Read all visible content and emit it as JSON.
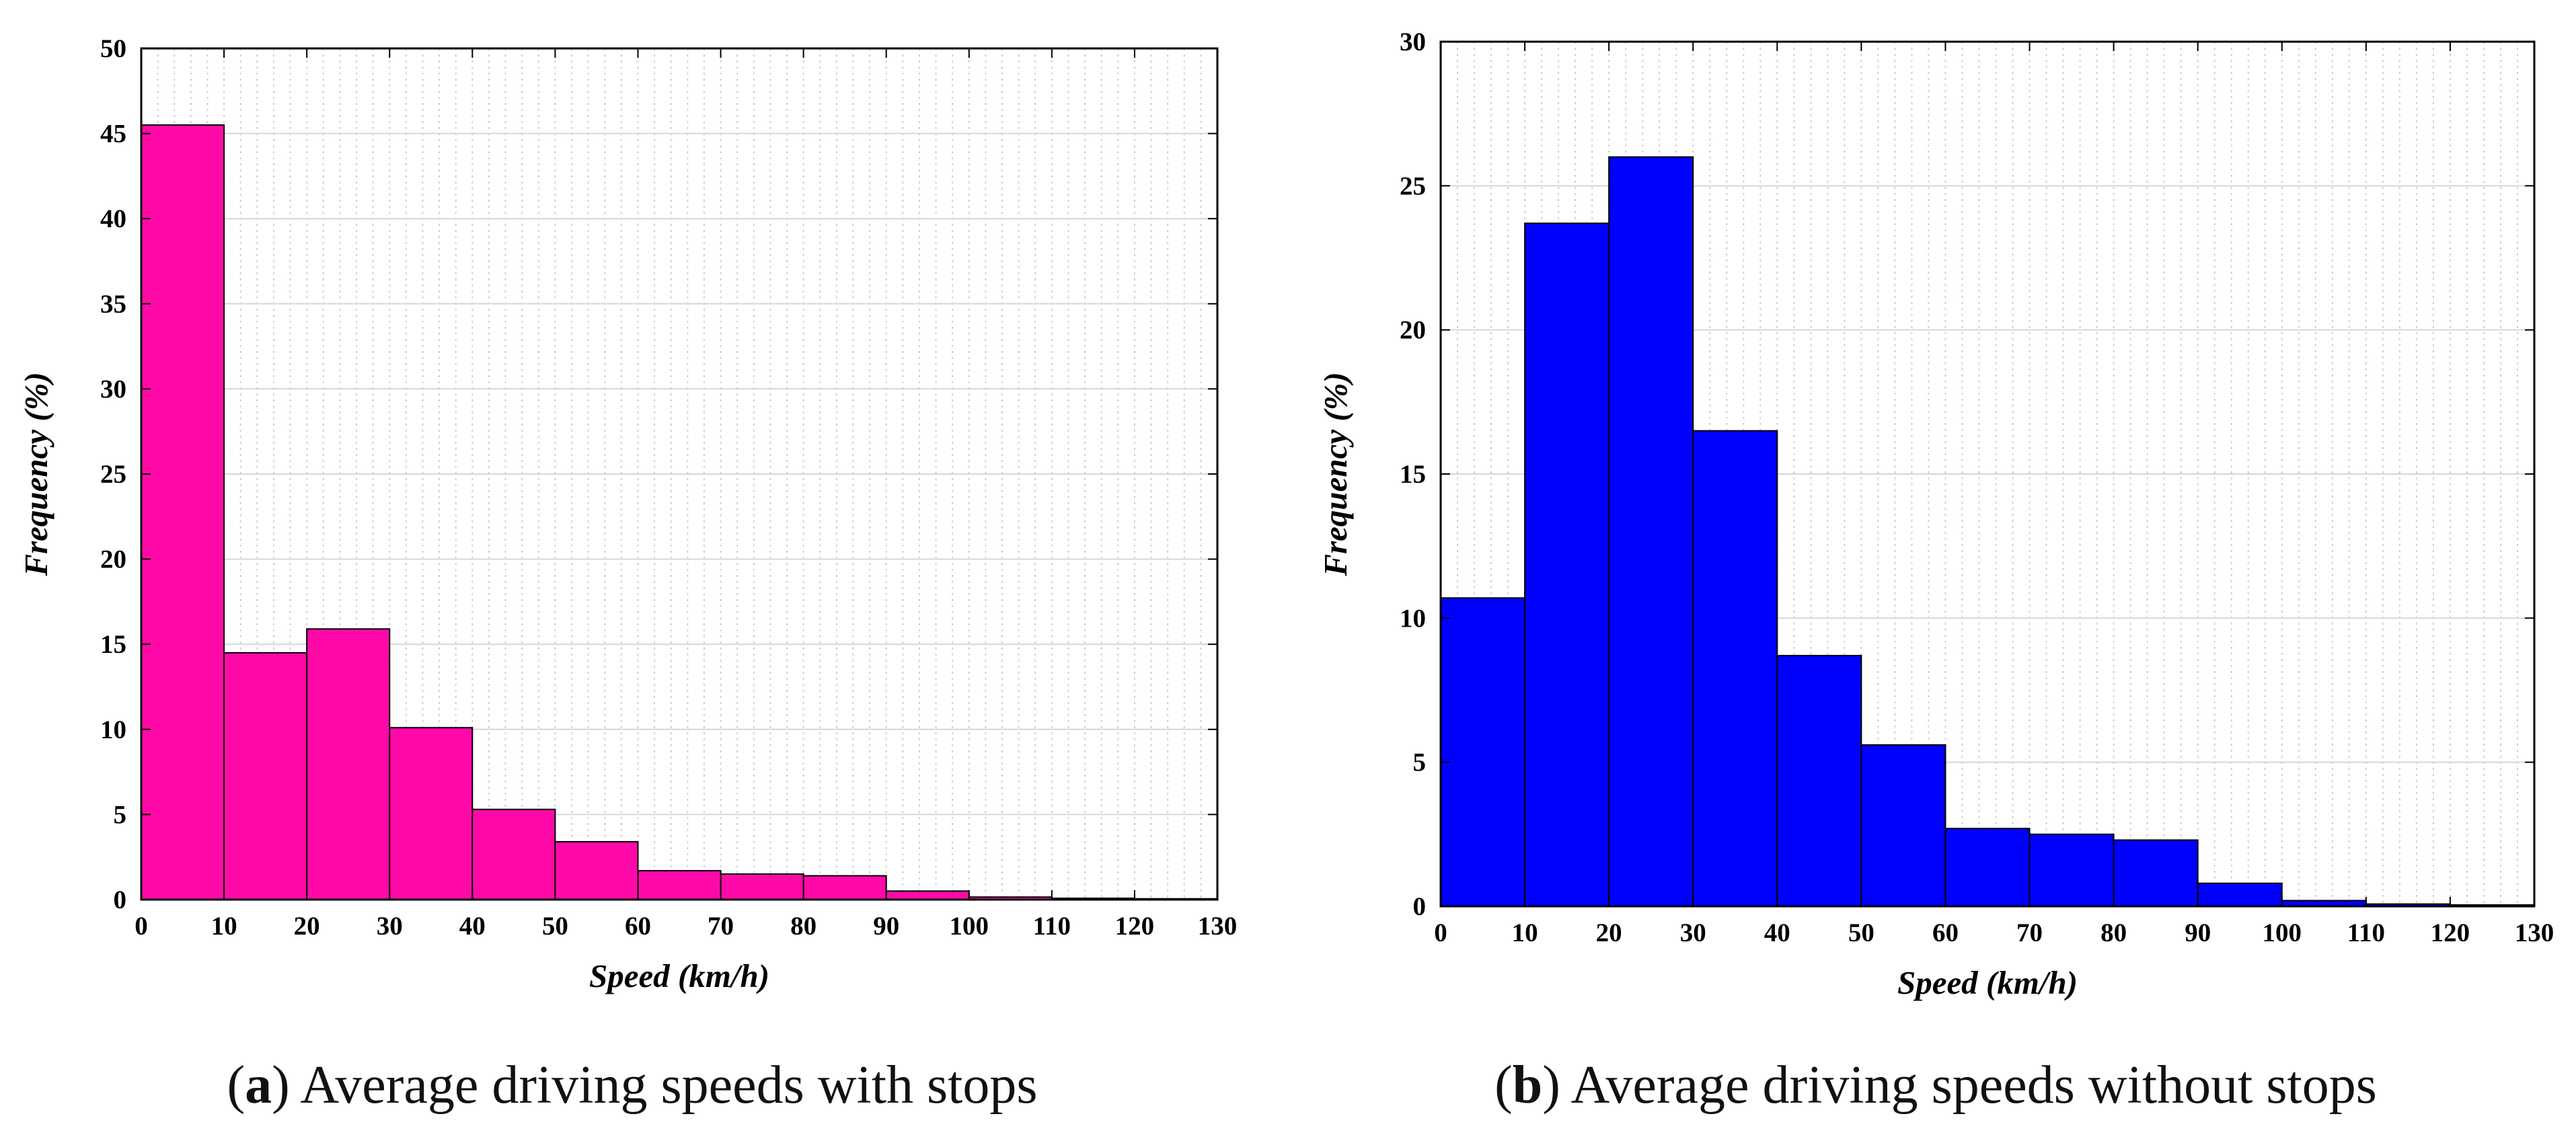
{
  "chart_data": [
    {
      "type": "bar",
      "panel": "a",
      "caption_label": "a",
      "caption_text": "Average driving speeds with stops",
      "color": "#ff0aa8",
      "bin_edges": [
        0,
        10,
        20,
        30,
        40,
        50,
        60,
        70,
        80,
        90,
        100,
        110,
        120,
        130
      ],
      "values": [
        45.5,
        14.5,
        15.9,
        10.1,
        5.3,
        3.4,
        1.7,
        1.5,
        1.4,
        0.5,
        0.15,
        0.08,
        0.05
      ],
      "xlabel": "Speed (km/h)",
      "ylabel": "Frequency (%)",
      "xlim": [
        0,
        130
      ],
      "ylim": [
        0,
        50
      ],
      "xticks": [
        0,
        10,
        20,
        30,
        40,
        50,
        60,
        70,
        80,
        90,
        100,
        110,
        120,
        130
      ],
      "yticks": [
        0,
        5,
        10,
        15,
        20,
        25,
        30,
        35,
        40,
        45,
        50
      ],
      "grid": true
    },
    {
      "type": "bar",
      "panel": "b",
      "caption_label": "b",
      "caption_text": "Average driving speeds without stops",
      "color": "#0000ff",
      "bin_edges": [
        0,
        10,
        20,
        30,
        40,
        50,
        60,
        70,
        80,
        90,
        100,
        110,
        120,
        130
      ],
      "values": [
        10.7,
        23.7,
        26.0,
        16.5,
        8.7,
        5.6,
        2.7,
        2.5,
        2.3,
        0.8,
        0.2,
        0.08,
        0.05
      ],
      "xlabel": "Speed (km/h)",
      "ylabel": "Frequency (%)",
      "xlim": [
        0,
        130
      ],
      "ylim": [
        0,
        30
      ],
      "xticks": [
        0,
        10,
        20,
        30,
        40,
        50,
        60,
        70,
        80,
        90,
        100,
        110,
        120,
        130
      ],
      "yticks": [
        0,
        5,
        10,
        15,
        20,
        25,
        30
      ],
      "grid": true
    }
  ]
}
